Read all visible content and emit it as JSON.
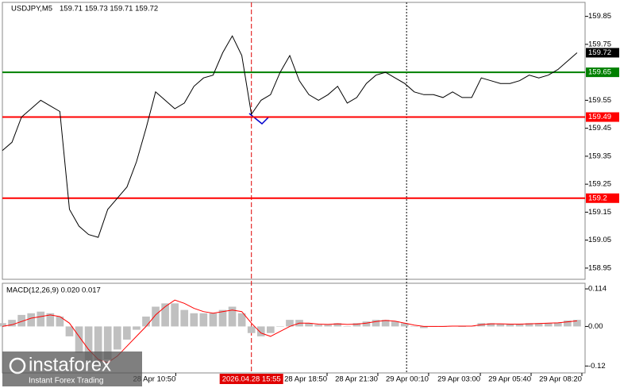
{
  "chart_data": [
    {
      "type": "line",
      "title": "USDJPY,M5",
      "subtitle": "159.71 159.73 159.71 159.72",
      "x": [
        0,
        1,
        2,
        3,
        4,
        5,
        6,
        7,
        8,
        9,
        10,
        11,
        12,
        13,
        14,
        15,
        16,
        17,
        18,
        19,
        20,
        21,
        22,
        23,
        24,
        25,
        26,
        27,
        28,
        29,
        30,
        31,
        32,
        33,
        34,
        35,
        36,
        37,
        38,
        39,
        40,
        41,
        42,
        43,
        44,
        45,
        46,
        47,
        48,
        49,
        50,
        51,
        52,
        53,
        54,
        55,
        56,
        57,
        58,
        59,
        60
      ],
      "values": [
        159.37,
        159.4,
        159.49,
        159.52,
        159.55,
        159.53,
        159.51,
        159.16,
        159.1,
        159.07,
        159.06,
        159.16,
        159.2,
        159.24,
        159.33,
        159.45,
        159.58,
        159.55,
        159.52,
        159.54,
        159.6,
        159.63,
        159.64,
        159.72,
        159.78,
        159.71,
        159.5,
        159.55,
        159.57,
        159.65,
        159.71,
        159.62,
        159.57,
        159.55,
        159.57,
        159.6,
        159.54,
        159.56,
        159.61,
        159.64,
        159.65,
        159.63,
        159.61,
        159.58,
        159.57,
        159.57,
        159.56,
        159.58,
        159.56,
        159.56,
        159.63,
        159.62,
        159.61,
        159.61,
        159.62,
        159.64,
        159.63,
        159.64,
        159.66,
        159.69,
        159.72
      ],
      "color": "#000000",
      "xlim": [
        0,
        61
      ],
      "xticks": [
        {
          "value": 18.1,
          "label": "28 Apr 10:50"
        },
        {
          "value": 33.9,
          "label": "28 Apr 18:50"
        },
        {
          "value": 39.2,
          "label": "28 Apr 21:30"
        },
        {
          "value": 44.5,
          "label": "29 Apr 00:10"
        },
        {
          "value": 49.9,
          "label": "29 Apr 03:00"
        },
        {
          "value": 55.2,
          "label": "29 Apr 05:40"
        },
        {
          "value": 60.5,
          "label": "29 Apr 08:20"
        }
      ],
      "ylim": [
        158.91,
        159.9
      ],
      "yticks": [
        159.85,
        159.75,
        159.55,
        159.45,
        159.35,
        159.25,
        159.15,
        159.05,
        158.95
      ],
      "levels": [
        {
          "value": 159.65,
          "color": "#008000"
        },
        {
          "value": 159.49,
          "color": "#ff0000"
        },
        {
          "value": 159.2,
          "color": "#ff0000"
        }
      ],
      "last": 159.72,
      "separator": 42.2,
      "crosshair": {
        "x": 26,
        "label": "2026.04.28 15:55",
        "color": "#e00000"
      },
      "grid": false
    },
    {
      "type": "macd",
      "title": "MACD(12,26,9) 0.020 0.017",
      "histogram": [
        0.01,
        0.02,
        0.035,
        0.04,
        0.045,
        0.04,
        0.03,
        -0.03,
        -0.08,
        -0.11,
        -0.12,
        -0.1,
        -0.07,
        -0.04,
        -0.01,
        0.03,
        0.06,
        0.07,
        0.07,
        0.05,
        0.04,
        0.04,
        0.04,
        0.05,
        0.06,
        0.04,
        -0.02,
        -0.03,
        -0.02,
        0.0,
        0.02,
        0.02,
        0.01,
        0.005,
        0.005,
        0.01,
        0.0,
        0.01,
        0.015,
        0.02,
        0.02,
        0.015,
        0.01,
        0.0,
        -0.005,
        0.0,
        0.0,
        0.002,
        0.0,
        0.002,
        0.01,
        0.01,
        0.008,
        0.007,
        0.007,
        0.01,
        0.01,
        0.01,
        0.012,
        0.018,
        0.02
      ],
      "signal": [
        0.0,
        0.005,
        0.015,
        0.025,
        0.03,
        0.035,
        0.03,
        0.01,
        -0.03,
        -0.07,
        -0.1,
        -0.11,
        -0.09,
        -0.06,
        -0.03,
        0.0,
        0.035,
        0.06,
        0.08,
        0.07,
        0.055,
        0.045,
        0.04,
        0.045,
        0.05,
        0.045,
        0.01,
        -0.02,
        -0.03,
        -0.015,
        0.0,
        0.01,
        0.01,
        0.007,
        0.006,
        0.008,
        0.006,
        0.007,
        0.01,
        0.015,
        0.018,
        0.016,
        0.01,
        0.004,
        0.0,
        0.0,
        0.0,
        0.001,
        0.001,
        0.001,
        0.005,
        0.008,
        0.008,
        0.007,
        0.007,
        0.008,
        0.009,
        0.01,
        0.011,
        0.014,
        0.017
      ],
      "histogram_color": "#c0c0c0",
      "signal_color": "#ff0000",
      "y2lim": [
        -0.141,
        0.131
      ],
      "y2ticks": [
        0.114,
        {
          "value": 0,
          "label": "0.00"
        },
        -0.12
      ]
    }
  ],
  "watermark": {
    "brand": "instaforex",
    "tagline": "Instant Forex Trading"
  }
}
